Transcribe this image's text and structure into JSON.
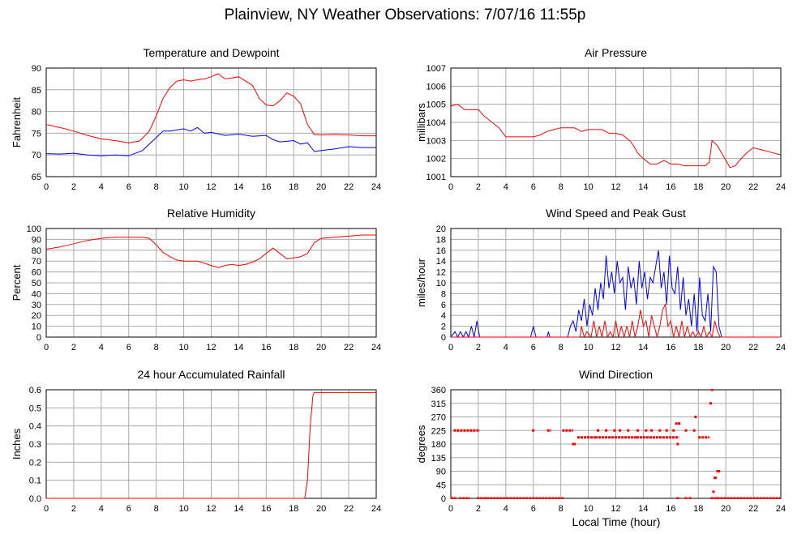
{
  "title": "Plainview, NY Weather Observations: 7/07/16 11:55p",
  "xlabel": "Local Time (hour)",
  "colors": {
    "primary": "#ff0000",
    "secondary": "#0000ff",
    "grid": "#aaaaaa",
    "axis": "#000000"
  },
  "chart_data": [
    {
      "id": "temperature",
      "type": "line",
      "title": "Temperature and Dewpoint",
      "ylabel": "Fahrenheit",
      "xlim": [
        0,
        24
      ],
      "ylim": [
        65,
        90
      ],
      "xticks": [
        "0",
        "2",
        "4",
        "6",
        "8",
        "10",
        "12",
        "14",
        "16",
        "18",
        "20",
        "22",
        "24"
      ],
      "yticks": [
        "65",
        "70",
        "75",
        "80",
        "85",
        "90"
      ],
      "grid": true,
      "series": [
        {
          "color": "#ff0000",
          "x": [
            0,
            1,
            2,
            3,
            4,
            5,
            6,
            6.8,
            7.5,
            8,
            8.5,
            9,
            9.5,
            10,
            10.5,
            11,
            11.5,
            12,
            12.5,
            13,
            13.5,
            14,
            14.5,
            15,
            15.5,
            16,
            16.5,
            17,
            17.5,
            18,
            18.5,
            19,
            19.5,
            20,
            21,
            22,
            23,
            24
          ],
          "y": [
            77,
            76.3,
            75.5,
            74.5,
            73.7,
            73.3,
            72.8,
            73.2,
            75.5,
            79,
            83,
            85.5,
            87,
            87.3,
            87,
            87.3,
            87.5,
            88,
            88.7,
            87.5,
            87.7,
            88,
            87,
            86,
            83,
            81.5,
            81.3,
            82.5,
            84.3,
            83.5,
            81.8,
            77,
            74.7,
            74.6,
            74.7,
            74.6,
            74.4,
            74.4
          ]
        },
        {
          "color": "#0000ff",
          "x": [
            0,
            1,
            2,
            3,
            4,
            5,
            6,
            7,
            7.5,
            8,
            8.5,
            9,
            10,
            10.5,
            11,
            11.5,
            12,
            13,
            14,
            15,
            16,
            16.5,
            17,
            18,
            18.5,
            19,
            19.5,
            20,
            21,
            22,
            23,
            24
          ],
          "y": [
            70.3,
            70.2,
            70.4,
            70,
            69.8,
            70,
            69.8,
            71,
            72.5,
            74,
            75.5,
            75.5,
            76,
            75.5,
            76.3,
            75,
            75.2,
            74.5,
            74.8,
            74.3,
            74.5,
            73.5,
            73,
            73.3,
            72.5,
            72.8,
            70.8,
            71,
            71.4,
            71.9,
            71.7,
            71.7
          ]
        }
      ]
    },
    {
      "id": "pressure",
      "type": "line",
      "title": "Air Pressure",
      "ylabel": "millibars",
      "xlim": [
        0,
        24
      ],
      "ylim": [
        1001,
        1007
      ],
      "xticks": [
        "0",
        "2",
        "4",
        "6",
        "8",
        "10",
        "12",
        "14",
        "16",
        "18",
        "20",
        "22",
        "24"
      ],
      "yticks": [
        "1001",
        "1002",
        "1003",
        "1004",
        "1005",
        "1006",
        "1007"
      ],
      "grid": true,
      "series": [
        {
          "color": "#ff0000",
          "x": [
            0,
            0.5,
            1,
            2,
            2.5,
            3,
            3.5,
            4,
            5,
            6,
            6.5,
            7,
            7.5,
            8,
            9,
            9.5,
            10,
            11,
            11.5,
            12,
            12.5,
            13,
            13.3,
            13.6,
            14,
            14.5,
            15,
            15.5,
            16,
            16.5,
            17,
            17.5,
            18,
            18.5,
            18.8,
            19,
            19.4,
            19.7,
            20,
            20.3,
            20.7,
            21,
            21.5,
            22,
            22.5,
            23,
            24
          ],
          "y": [
            1004.9,
            1005,
            1004.7,
            1004.7,
            1004.3,
            1004,
            1003.7,
            1003.2,
            1003.2,
            1003.2,
            1003.3,
            1003.5,
            1003.6,
            1003.7,
            1003.7,
            1003.5,
            1003.6,
            1003.6,
            1003.4,
            1003.4,
            1003.3,
            1003,
            1002.7,
            1002.3,
            1002,
            1001.7,
            1001.7,
            1001.9,
            1001.7,
            1001.7,
            1001.6,
            1001.6,
            1001.6,
            1001.6,
            1001.8,
            1003,
            1002.7,
            1002.3,
            1001.9,
            1001.5,
            1001.6,
            1001.9,
            1002.3,
            1002.6,
            1002.5,
            1002.4,
            1002.2
          ]
        }
      ]
    },
    {
      "id": "humidity",
      "type": "line",
      "title": "Relative Humidity",
      "ylabel": "Percent",
      "xlim": [
        0,
        24
      ],
      "ylim": [
        0,
        100
      ],
      "xticks": [
        "0",
        "2",
        "4",
        "6",
        "8",
        "10",
        "12",
        "14",
        "16",
        "18",
        "20",
        "22",
        "24"
      ],
      "yticks": [
        "0",
        "10",
        "20",
        "30",
        "40",
        "50",
        "60",
        "70",
        "80",
        "90",
        "100"
      ],
      "grid": true,
      "series": [
        {
          "color": "#ff0000",
          "x": [
            0,
            1,
            2,
            3,
            4,
            5,
            6,
            7,
            7.5,
            8,
            8.5,
            9,
            9.5,
            10,
            10.5,
            11,
            11.5,
            12,
            12.5,
            13,
            13.5,
            14,
            14.5,
            15,
            15.5,
            16,
            16.5,
            17,
            17.5,
            18,
            18.5,
            19,
            19.5,
            20,
            21,
            22,
            23,
            24
          ],
          "y": [
            81,
            83,
            86,
            89,
            91,
            92,
            92,
            92,
            91,
            85,
            78,
            74,
            71,
            70,
            70,
            70,
            68,
            66,
            64,
            66,
            67,
            66,
            67,
            69,
            72,
            77,
            82,
            77,
            72,
            73,
            74,
            77,
            87,
            91,
            92,
            93,
            94,
            94
          ]
        }
      ]
    },
    {
      "id": "wind",
      "type": "line",
      "title": "Wind Speed and Peak Gust",
      "ylabel": "miles/hour",
      "xlim": [
        0,
        24
      ],
      "ylim": [
        0,
        20
      ],
      "xticks": [
        "0",
        "2",
        "4",
        "6",
        "8",
        "10",
        "12",
        "14",
        "16",
        "18",
        "20",
        "22",
        "24"
      ],
      "yticks": [
        "0",
        "2",
        "4",
        "6",
        "8",
        "10",
        "12",
        "14",
        "16",
        "18",
        "20"
      ],
      "grid": true,
      "series": [
        {
          "color": "#0000ff",
          "x": [
            0,
            0.3,
            0.5,
            0.7,
            0.9,
            1.1,
            1.3,
            1.5,
            1.7,
            1.9,
            2.1,
            2.5,
            5.8,
            6,
            6.2,
            6.5,
            7,
            7.1,
            7.2,
            7.5,
            8.5,
            8.7,
            8.9,
            9.1,
            9.3,
            9.5,
            9.7,
            9.9,
            10.1,
            10.3,
            10.5,
            10.7,
            10.9,
            11.1,
            11.3,
            11.5,
            11.7,
            11.9,
            12.1,
            12.3,
            12.5,
            12.7,
            12.9,
            13.1,
            13.3,
            13.5,
            13.7,
            13.9,
            14.1,
            14.3,
            14.5,
            14.7,
            14.9,
            15.1,
            15.3,
            15.5,
            15.7,
            15.9,
            16.1,
            16.3,
            16.5,
            16.7,
            16.9,
            17.1,
            17.3,
            17.5,
            17.7,
            17.9,
            18.1,
            18.3,
            18.5,
            18.7,
            18.9,
            19.1,
            19.3,
            19.5,
            19.7,
            20,
            24
          ],
          "y": [
            0,
            1,
            0,
            1,
            0,
            1,
            0,
            2,
            0,
            3,
            0,
            0,
            0,
            2,
            0,
            0,
            0,
            1,
            0,
            0,
            0,
            2,
            3,
            1,
            5,
            3,
            7,
            2,
            6,
            4,
            9,
            5,
            10,
            7,
            15,
            9,
            12,
            8,
            14,
            10,
            11,
            5,
            13,
            9,
            11,
            6,
            14,
            9,
            12,
            7,
            11,
            10,
            13,
            16,
            9,
            12,
            6,
            15,
            9,
            8,
            13,
            5,
            11,
            4,
            7,
            2,
            8,
            1,
            11,
            4,
            3,
            8,
            1,
            13,
            12,
            2,
            0,
            0,
            0
          ]
        },
        {
          "color": "#ff0000",
          "x": [
            0,
            9.4,
            9.5,
            9.7,
            9.9,
            10.2,
            10.4,
            10.6,
            10.8,
            11,
            11.2,
            11.4,
            11.6,
            11.8,
            12,
            12.2,
            12.4,
            12.6,
            12.8,
            13,
            13.2,
            13.4,
            13.6,
            13.8,
            14,
            14.2,
            14.4,
            14.6,
            14.8,
            15,
            15.2,
            15.4,
            15.6,
            15.8,
            16,
            16.2,
            16.4,
            16.6,
            16.8,
            17,
            17.2,
            17.4,
            17.6,
            17.8,
            18,
            18.2,
            18.4,
            18.6,
            18.8,
            19,
            19.2,
            19.4,
            19.6,
            24
          ],
          "y": [
            0,
            0,
            2,
            0,
            1,
            0,
            3,
            0,
            2,
            0,
            3,
            0,
            1,
            0,
            3,
            0,
            2,
            0,
            2,
            0,
            3,
            0,
            2,
            5,
            2,
            3,
            0,
            4,
            2,
            0,
            2,
            5,
            6,
            2,
            3,
            0,
            2,
            0,
            3,
            0,
            2,
            0,
            1,
            0,
            1,
            0,
            2,
            0,
            1,
            0,
            3,
            1,
            0,
            0
          ]
        }
      ]
    },
    {
      "id": "rainfall",
      "type": "line",
      "title": "24 hour Accumulated Rainfall",
      "ylabel": "Inches",
      "xlim": [
        0,
        24
      ],
      "ylim": [
        0,
        0.6
      ],
      "xticks": [
        "0",
        "2",
        "4",
        "6",
        "8",
        "10",
        "12",
        "14",
        "16",
        "18",
        "20",
        "22",
        "24"
      ],
      "yticks": [
        "0.0",
        "0.1",
        "0.2",
        "0.3",
        "0.4",
        "0.5",
        "0.6"
      ],
      "grid": true,
      "series": [
        {
          "color": "#ff0000",
          "x": [
            0,
            18.8,
            19,
            19.2,
            19.4,
            19.5,
            24
          ],
          "y": [
            0,
            0,
            0.1,
            0.4,
            0.57,
            0.585,
            0.585
          ]
        }
      ]
    },
    {
      "id": "direction",
      "type": "scatter",
      "title": "Wind Direction",
      "ylabel": "degrees",
      "xlim": [
        0,
        24
      ],
      "ylim": [
        0,
        360
      ],
      "xticks": [
        "0",
        "2",
        "4",
        "6",
        "8",
        "10",
        "12",
        "14",
        "16",
        "18",
        "20",
        "22",
        "24"
      ],
      "yticks": [
        "0",
        "45",
        "90",
        "135",
        "180",
        "225",
        "270",
        "315",
        "360"
      ],
      "grid": true,
      "series": [
        {
          "color": "#ff0000",
          "segments": [
            [
              0,
              0.2,
              0
            ],
            [
              0.6,
              1.4,
              0
            ],
            [
              1.9,
              8.2,
              0
            ],
            [
              18.9,
              24,
              0
            ],
            [
              0.2,
              2.1,
              225
            ],
            [
              5.9,
              6.1,
              225
            ],
            [
              7.0,
              7.3,
              225
            ],
            [
              8.1,
              8.9,
              225
            ],
            [
              9.2,
              10.5,
              202
            ],
            [
              10.5,
              13.5,
              202
            ],
            [
              13.5,
              16.6,
              202
            ],
            [
              18.0,
              18.8,
              202
            ]
          ],
          "points": [
            [
              16.5,
              0
            ],
            [
              17.1,
              0
            ],
            [
              17.4,
              0
            ],
            [
              0.3,
              0
            ],
            [
              2.5,
              0
            ],
            [
              8.9,
              180
            ],
            [
              9.0,
              180
            ],
            [
              16.5,
              180
            ],
            [
              10.7,
              225
            ],
            [
              11.3,
              225
            ],
            [
              11.9,
              225
            ],
            [
              12.3,
              225
            ],
            [
              12.9,
              225
            ],
            [
              13.6,
              225
            ],
            [
              14.2,
              225
            ],
            [
              14.6,
              225
            ],
            [
              15.2,
              225
            ],
            [
              15.7,
              225
            ],
            [
              16.2,
              225
            ],
            [
              17.7,
              225
            ],
            [
              16.4,
              248
            ],
            [
              16.6,
              248
            ],
            [
              17.1,
              225
            ],
            [
              17.8,
              270
            ],
            [
              18.9,
              315
            ],
            [
              19.0,
              360
            ],
            [
              19.1,
              22
            ],
            [
              19.2,
              68
            ],
            [
              19.25,
              68
            ],
            [
              19.4,
              90
            ],
            [
              19.5,
              90
            ],
            [
              19.4,
              0
            ]
          ]
        }
      ]
    }
  ]
}
